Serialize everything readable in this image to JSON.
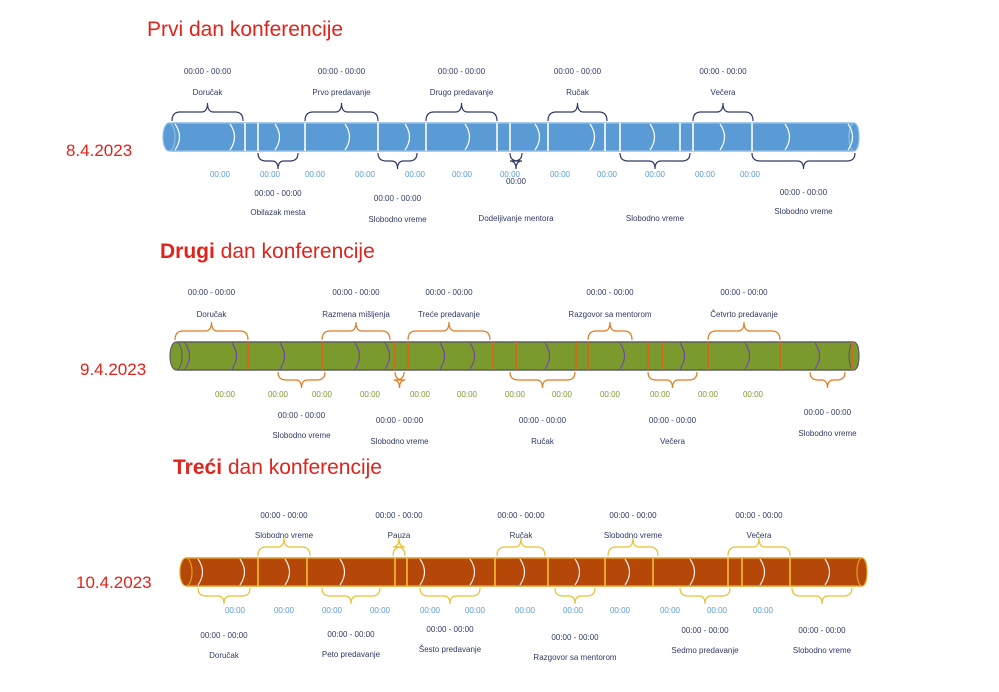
{
  "days": [
    {
      "title_bold": "Prvi",
      "title_rest": " dan konferencije",
      "date": "8.4.2023",
      "colors": {
        "fill": "#5b9bd5",
        "edge": "#8fbce6",
        "line": "#ffffff",
        "brace": "#2f3a66",
        "tick": "#5b9bd5"
      },
      "top_events": [
        {
          "time": "00:00 - 00:00",
          "label": "Doručak"
        },
        {
          "time": "00:00 - 00:00",
          "label": "Prvo predavanje"
        },
        {
          "time": "00:00 - 00:00",
          "label": "Drugo predavanje"
        },
        {
          "time": "00:00 - 00:00",
          "label": "Ručak"
        },
        {
          "time": "00:00 - 00:00",
          "label": "Večera"
        }
      ],
      "bottom_events": [
        {
          "time": "00:00 - 00:00",
          "label": "Obilazak mesta"
        },
        {
          "time": "00:00 - 00:00",
          "label": "Slobodno vreme"
        },
        {
          "time": "00:00",
          "label": "Dodeljivanje mentora"
        },
        {
          "time": "",
          "label": "Slobodno vreme"
        },
        {
          "time": "00:00 - 00:00",
          "label": "Slobodno vreme"
        }
      ],
      "ticks": [
        "00:00",
        "00:00",
        "00:00",
        "00:00",
        "00:00",
        "00:00",
        "00:00",
        "00:00",
        "00:00",
        "00:00",
        "00:00",
        "00:00"
      ]
    },
    {
      "title_bold": "Drugi",
      "title_rest": " dan konferencije",
      "date": "9.4.2023",
      "colors": {
        "fill": "#7a9a2e",
        "edge": "#5f5f5f",
        "line": "#7048a8",
        "brace": "#e07a20",
        "tick": "#7a9a2e"
      },
      "top_events": [
        {
          "time": "00:00 - 00:00",
          "label": "Doručak"
        },
        {
          "time": "00:00 - 00:00",
          "label": "Razmena mišljenja"
        },
        {
          "time": "00:00 - 00:00",
          "label": "Treće predavanje"
        },
        {
          "time": "00:00 - 00:00",
          "label": "Razgovor sa mentorom"
        },
        {
          "time": "00:00 - 00:00",
          "label": "Četvrto predavanje"
        }
      ],
      "bottom_events": [
        {
          "time": "00:00 - 00:00",
          "label": "Slobodno vreme"
        },
        {
          "time": "00:00 - 00:00",
          "label": "Slobodno vreme"
        },
        {
          "time": "00:00 - 00:00",
          "label": "Ručak"
        },
        {
          "time": "00:00 - 00:00",
          "label": "Večera"
        },
        {
          "time": "00:00 - 00:00",
          "label": "Slobodno vreme"
        }
      ],
      "ticks": [
        "00:00",
        "00:00",
        "00:00",
        "00:00",
        "00:00",
        "00:00",
        "00:00",
        "00:00",
        "00:00",
        "00:00",
        "00:00",
        "00:00"
      ]
    },
    {
      "title_bold": "Treći",
      "title_rest": " dan konferencije",
      "date": "10.4.2023",
      "colors": {
        "fill": "#b54708",
        "edge": "#e0a020",
        "line": "#f0f0f0",
        "brace": "#e8c030",
        "tick": "#5b9bd5"
      },
      "top_events": [
        {
          "time": "00:00 - 00:00",
          "label": "Slobodno vreme"
        },
        {
          "time": "00:00 - 00:00",
          "label": "Pauza"
        },
        {
          "time": "00:00 - 00:00",
          "label": "Ručak"
        },
        {
          "time": "00:00 - 00:00",
          "label": "Slobodno vreme"
        },
        {
          "time": "00:00 - 00:00",
          "label": "Večera"
        }
      ],
      "bottom_events": [
        {
          "time": "00:00 - 00:00",
          "label": "Doručak"
        },
        {
          "time": "00:00 - 00:00",
          "label": "Peto predavanje"
        },
        {
          "time": "00:00 - 00:00",
          "label": "Šesto predavanje"
        },
        {
          "time": "00:00 - 00:00",
          "label": "Razgovor sa mentorom"
        },
        {
          "time": "00:00 - 00:00",
          "label": "Sedmo predavanje"
        },
        {
          "time": "00:00 - 00:00",
          "label": "Slobodno vreme"
        }
      ],
      "ticks": [
        "00:00",
        "00:00",
        "00:00",
        "00:00",
        "00:00",
        "00:00",
        "00:00",
        "00:00",
        "00:00",
        "00:00",
        "00:00",
        "00:00"
      ]
    }
  ]
}
